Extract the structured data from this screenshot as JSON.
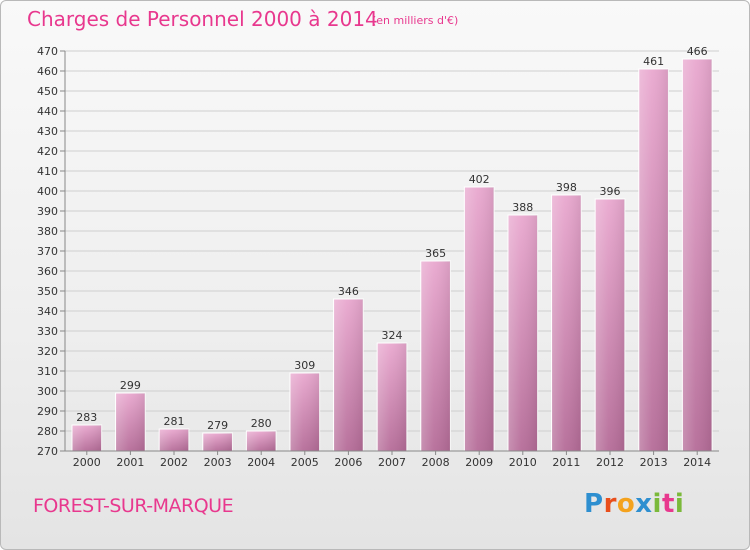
{
  "header": {
    "title": "Charges de Personnel 2000 à 2014",
    "subtitle": "(en milliers d'€)"
  },
  "footer": {
    "commune": "FOREST-SUR-MARQUE",
    "logo": "Proxiti"
  },
  "colors": {
    "accent": "#e8388e",
    "bar_top": "#e9a8cf",
    "bar_bottom": "#b56c98"
  },
  "chart_data": {
    "type": "bar",
    "title": "Charges de Personnel 2000 à 2014",
    "subtitle": "(en milliers d'€)",
    "categories": [
      "2000",
      "2001",
      "2002",
      "2003",
      "2004",
      "2005",
      "2006",
      "2007",
      "2008",
      "2009",
      "2010",
      "2011",
      "2012",
      "2013",
      "2014"
    ],
    "values": [
      283,
      299,
      281,
      279,
      280,
      309,
      346,
      324,
      365,
      402,
      388,
      398,
      396,
      461,
      466
    ],
    "ylim": [
      270,
      470
    ],
    "ytick_step": 10,
    "grid": true,
    "xlabel": "",
    "ylabel": ""
  }
}
